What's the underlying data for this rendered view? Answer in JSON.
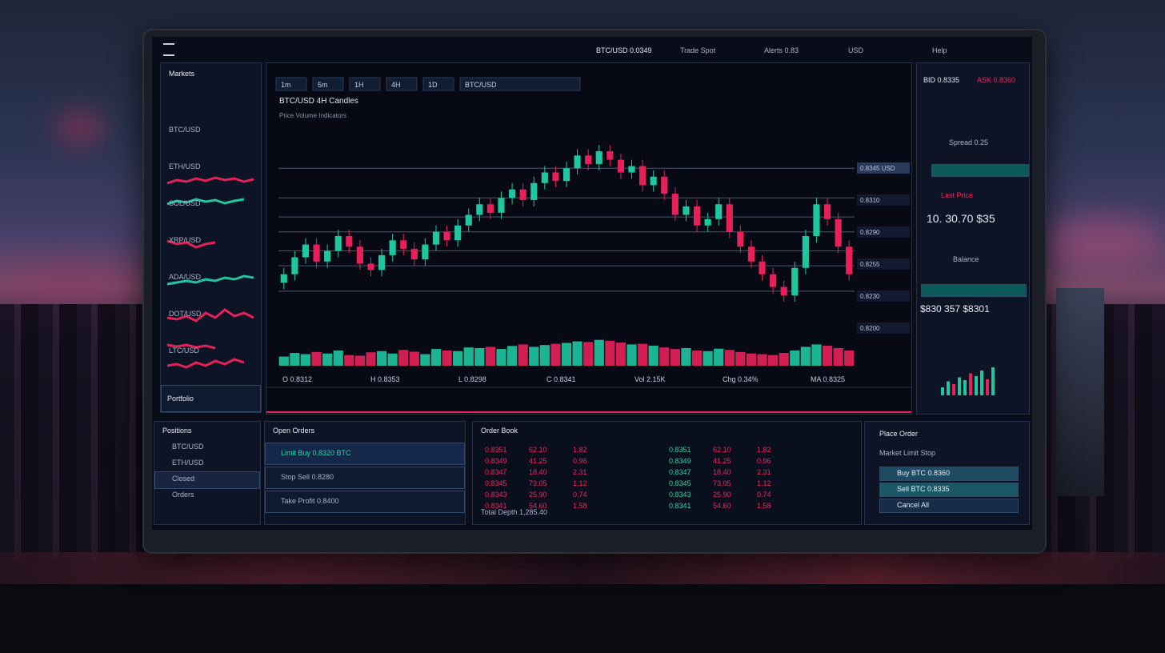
{
  "top_bar": {
    "items": [
      "BTC/USD 0.0349",
      "Trade Spot",
      "Alerts 0.83",
      "USD",
      "Help"
    ]
  },
  "left_panel": {
    "title": "Markets",
    "items": [
      "BTC/USD",
      "ETH/USD",
      "SOL/USD",
      "XRP/USD",
      "ADA/USD",
      "DOT/USD",
      "LTC/USD"
    ],
    "footer": "Portfolio"
  },
  "price_chart": {
    "type": "candlestick",
    "toolbar": [
      "1m",
      "5m",
      "1H",
      "4H",
      "1D",
      "BTC/USD"
    ],
    "title": "BTC/USD 4H Candles",
    "subtitle": "Price Volume Indicators",
    "price_tags": [
      "0.8345 USD",
      "0.8310",
      "0.8290",
      "0.8255",
      "0.8230",
      "0.8200"
    ],
    "ylim": [
      0,
      100
    ],
    "levels": [
      72,
      58,
      49,
      42,
      33,
      26,
      14
    ],
    "up_color": "#1fc7a0",
    "down_color": "#e8205a",
    "open": [
      18,
      22,
      30,
      36,
      28,
      33,
      40,
      35,
      27,
      24,
      31,
      38,
      34,
      29,
      36,
      42,
      38,
      45,
      50,
      55,
      51,
      58,
      62,
      57,
      65,
      70,
      66,
      72,
      78,
      74,
      80,
      76,
      70,
      73,
      64,
      68,
      60,
      50,
      54,
      45,
      48,
      55,
      42,
      35,
      28,
      22,
      16,
      12,
      25,
      40,
      55,
      48,
      35
    ],
    "high": [
      25,
      33,
      39,
      39,
      36,
      43,
      43,
      38,
      30,
      34,
      41,
      41,
      37,
      39,
      45,
      45,
      48,
      53,
      58,
      58,
      61,
      65,
      65,
      68,
      73,
      73,
      75,
      81,
      81,
      83,
      83,
      79,
      76,
      76,
      71,
      71,
      63,
      57,
      57,
      51,
      58,
      58,
      45,
      38,
      31,
      25,
      19,
      28,
      43,
      58,
      58,
      51,
      38
    ],
    "low": [
      15,
      19,
      27,
      25,
      25,
      30,
      32,
      24,
      21,
      21,
      28,
      31,
      26,
      26,
      33,
      35,
      35,
      42,
      47,
      48,
      48,
      55,
      54,
      54,
      62,
      63,
      63,
      69,
      71,
      71,
      73,
      67,
      67,
      61,
      61,
      57,
      47,
      47,
      42,
      42,
      45,
      39,
      32,
      25,
      19,
      13,
      9,
      9,
      22,
      37,
      45,
      32,
      19
    ],
    "close": [
      22,
      30,
      36,
      28,
      33,
      40,
      35,
      27,
      24,
      31,
      38,
      34,
      29,
      36,
      42,
      38,
      45,
      50,
      55,
      51,
      58,
      62,
      57,
      65,
      70,
      66,
      72,
      78,
      74,
      80,
      76,
      70,
      73,
      64,
      68,
      60,
      50,
      54,
      45,
      48,
      55,
      42,
      35,
      28,
      22,
      16,
      12,
      25,
      40,
      55,
      48,
      35,
      22
    ],
    "volume_lim": [
      0,
      100
    ],
    "volume": [
      30,
      42,
      38,
      45,
      40,
      50,
      35,
      33,
      44,
      48,
      40,
      52,
      46,
      38,
      55,
      50,
      48,
      60,
      58,
      62,
      55,
      65,
      70,
      62,
      68,
      72,
      75,
      80,
      78,
      85,
      82,
      76,
      70,
      72,
      66,
      60,
      55,
      58,
      50,
      48,
      56,
      52,
      45,
      40,
      38,
      35,
      42,
      50,
      62,
      70,
      66,
      58,
      50
    ],
    "stats": [
      "O 0.8312",
      "H 0.8353",
      "L 0.8298",
      "C 0.8341",
      "Vol 2.15K",
      "Chg 0.34%",
      "MA 0.8325"
    ]
  },
  "right_panel": {
    "header": [
      "BID 0.8335",
      "ASK 0.8360"
    ],
    "spread": "Spread 0.25",
    "last_label": "Last Price",
    "last_value": "10. 30.70 $35",
    "balance_label": "Balance",
    "balance_value": "$830 357 $8301",
    "mini_chart": [
      20,
      35,
      28,
      45,
      38,
      55,
      48,
      62,
      40,
      70
    ],
    "mini_lim": [
      0,
      100
    ]
  },
  "bottom": {
    "positions": {
      "title": "Positions",
      "items": [
        "BTC/USD",
        "ETH/USD",
        "Closed",
        "Orders"
      ]
    },
    "orders": {
      "title": "Open Orders",
      "items": [
        "Limit Buy 0.8320 BTC",
        "Stop Sell 0.8280",
        "Take Profit 0.8400"
      ]
    },
    "book": {
      "title": "Order Book",
      "rows": [
        [
          "0.8351",
          "62.10",
          "1.82"
        ],
        [
          "0.8349",
          "41.25",
          "0.96"
        ],
        [
          "0.8347",
          "18.40",
          "2.31"
        ],
        [
          "0.8345",
          "73.05",
          "1.12"
        ],
        [
          "0.8343",
          "25.90",
          "0.74"
        ],
        [
          "0.8341",
          "54.60",
          "1.58"
        ]
      ],
      "footer": "Total Depth 1,285.40"
    },
    "trade": {
      "title": "Place Order",
      "subtitle": "Market Limit Stop",
      "buttons": [
        "Buy BTC 0.8360",
        "Sell BTC 0.8335",
        "Cancel All"
      ]
    }
  }
}
